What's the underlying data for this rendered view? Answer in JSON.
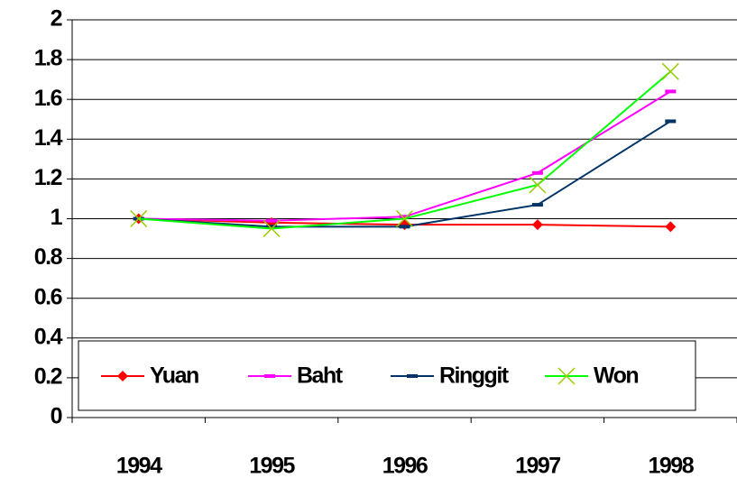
{
  "chart_data": {
    "type": "line",
    "categories": [
      "1994",
      "1995",
      "1996",
      "1997",
      "1998"
    ],
    "series": [
      {
        "name": "Yuan",
        "color": "#ff0000",
        "marker": "diamond",
        "values": [
          1.0,
          0.98,
          0.97,
          0.97,
          0.96
        ]
      },
      {
        "name": "Baht",
        "color": "#ff00ff",
        "marker": "dash",
        "values": [
          1.0,
          0.99,
          1.01,
          1.23,
          1.64
        ]
      },
      {
        "name": "Ringgit",
        "color": "#003366",
        "marker": "dash",
        "values": [
          1.0,
          0.96,
          0.96,
          1.07,
          1.49
        ]
      },
      {
        "name": "Won",
        "color": "#00ff00",
        "marker": "x",
        "values": [
          1.0,
          0.95,
          1.0,
          1.17,
          1.74
        ]
      }
    ],
    "ylim": [
      0,
      2
    ],
    "yticks": [
      0,
      0.2,
      0.4,
      0.6,
      0.8,
      1,
      1.2,
      1.4,
      1.6,
      1.8,
      2
    ],
    "grid": true,
    "legend": "bottom"
  }
}
